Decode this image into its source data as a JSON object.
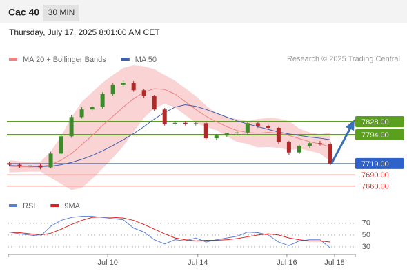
{
  "header": {
    "title": "Cac 40",
    "interval": "30 MIN",
    "date": "Thursday, July 17, 2025 8:01:00 AM CET"
  },
  "chart_data": [
    {
      "type": "candlestick",
      "source": "Research © 2025 Trading Central",
      "xlim": [
        -0.1,
        33.4
      ],
      "ylim": [
        7640,
        7975
      ],
      "up_color": "#3d8a2a",
      "down_color": "#b02a2a",
      "open": [
        7720,
        7716,
        7712,
        7714,
        7709,
        7745,
        7790,
        7840,
        7860,
        7866,
        7900,
        7925,
        7930,
        7910,
        7895,
        7860,
        7822,
        7825,
        7822,
        7824,
        7785,
        7792,
        7798,
        7800,
        7824,
        7816,
        7812,
        7775,
        7748,
        7765,
        7772,
        7770
      ],
      "high": [
        7724,
        7720,
        7718,
        7719,
        7750,
        7796,
        7846,
        7866,
        7870,
        7905,
        7930,
        7936,
        7934,
        7914,
        7898,
        7864,
        7830,
        7830,
        7828,
        7828,
        7796,
        7798,
        7804,
        7828,
        7828,
        7820,
        7814,
        7778,
        7768,
        7776,
        7778,
        7774
      ],
      "low": [
        7712,
        7708,
        7708,
        7704,
        7706,
        7740,
        7786,
        7836,
        7856,
        7862,
        7896,
        7920,
        7906,
        7890,
        7856,
        7818,
        7818,
        7818,
        7818,
        7780,
        7780,
        7788,
        7794,
        7796,
        7812,
        7808,
        7770,
        7742,
        7744,
        7760,
        7766,
        7715
      ],
      "close": [
        7716,
        7712,
        7714,
        7709,
        7745,
        7790,
        7840,
        7860,
        7866,
        7900,
        7925,
        7930,
        7910,
        7895,
        7860,
        7822,
        7825,
        7822,
        7824,
        7785,
        7792,
        7798,
        7800,
        7824,
        7816,
        7812,
        7775,
        7748,
        7765,
        7772,
        7770,
        7719
      ],
      "band": {
        "color": "#f9c9c9",
        "upper": [
          7728,
          7725,
          7722,
          7724,
          7750,
          7790,
          7840,
          7880,
          7905,
          7930,
          7950,
          7968,
          7975,
          7972,
          7965,
          7950,
          7935,
          7915,
          7895,
          7870,
          7850,
          7840,
          7835,
          7830,
          7835,
          7838,
          7836,
          7830,
          7810,
          7800,
          7795,
          7800
        ],
        "lower": [
          7696,
          7697,
          7698,
          7698,
          7682,
          7666,
          7650,
          7656,
          7679,
          7706,
          7734,
          7764,
          7801,
          7838,
          7863,
          7874,
          7865,
          7845,
          7825,
          7814,
          7806,
          7790,
          7775,
          7770,
          7761,
          7762,
          7760,
          7754,
          7758,
          7752,
          7745,
          7724
        ]
      },
      "series": [
        {
          "name": "MA 20 + Bollinger Bands",
          "color": "#f08080",
          "values": [
            7712,
            7711,
            7710,
            7711,
            7716,
            7728,
            7745,
            7768,
            7792,
            7818,
            7842,
            7866,
            7888,
            7905,
            7914,
            7912,
            7900,
            7880,
            7860,
            7842,
            7828,
            7815,
            7805,
            7800,
            7798,
            7800,
            7798,
            7792,
            7784,
            7776,
            7770,
            7762
          ]
        },
        {
          "name": "MA 50",
          "color": "#3f5fa8",
          "values": [
            7714,
            7713,
            7712,
            7711,
            7712,
            7716,
            7722,
            7730,
            7740,
            7752,
            7766,
            7781,
            7797,
            7815,
            7835,
            7852,
            7866,
            7872,
            7868,
            7860,
            7850,
            7840,
            7830,
            7822,
            7815,
            7808,
            7801,
            7796,
            7792,
            7788,
            7785,
            7781
          ]
        }
      ],
      "levels": [
        {
          "value": 7828,
          "label": "7828.00",
          "color": "#5aa01e",
          "boxed": true
        },
        {
          "value": 7794,
          "label": "7794.00",
          "color": "#5aa01e",
          "boxed": true
        },
        {
          "value": 7719,
          "label": "7719.00",
          "color": "#2f62c9",
          "boxed": true
        },
        {
          "value": 7690,
          "label": "7690.00",
          "color": "#f08a8a",
          "boxed": false
        },
        {
          "value": 7660,
          "label": "7660.00",
          "color": "#f08a8a",
          "boxed": false
        }
      ]
    },
    {
      "type": "line",
      "xlim": [
        -0.1,
        33.4
      ],
      "ylim": [
        17,
        105
      ],
      "yticks": [
        30,
        50,
        70
      ],
      "grid": true,
      "xticks": [
        {
          "value": 9.5,
          "label": "Jul 10"
        },
        {
          "value": 18.2,
          "label": "Jul 14"
        },
        {
          "value": 26.8,
          "label": "Jul 16"
        },
        {
          "value": 31.4,
          "label": "Jul 18"
        }
      ],
      "series": [
        {
          "name": "RSI",
          "color": "#5b7fd6",
          "values": [
            55,
            52,
            50,
            48,
            65,
            75,
            80,
            82,
            82,
            80,
            78,
            76,
            62,
            55,
            42,
            35,
            42,
            40,
            45,
            38,
            42,
            45,
            48,
            55,
            54,
            50,
            38,
            32,
            40,
            42,
            42,
            28
          ]
        },
        {
          "name": "9MA",
          "color": "#e02020",
          "values": [
            55,
            54,
            52,
            50,
            53,
            60,
            68,
            75,
            80,
            81,
            80,
            79,
            75,
            68,
            60,
            52,
            45,
            42,
            40,
            41,
            41,
            42,
            44,
            47,
            50,
            52,
            50,
            45,
            42,
            40,
            40,
            38
          ]
        }
      ]
    }
  ]
}
